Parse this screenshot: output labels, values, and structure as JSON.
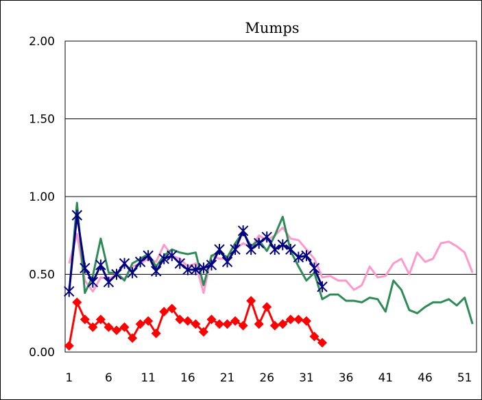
{
  "chart_data": {
    "type": "line",
    "title": "Mumps",
    "xlabel": "",
    "ylabel": "",
    "xlim": [
      1,
      52
    ],
    "ylim": [
      0,
      2
    ],
    "y_ticks": [
      "0.00",
      "0.50",
      "1.00",
      "1.50",
      "2.00"
    ],
    "x_ticks": [
      "1",
      "6",
      "11",
      "16",
      "21",
      "26",
      "31",
      "36",
      "41",
      "46",
      "51"
    ],
    "grid": "horizontal",
    "legend": "none",
    "series": [
      {
        "color": "#ff99cc",
        "marker": "none",
        "x": [
          1,
          2,
          3,
          4,
          5,
          6,
          7,
          8,
          9,
          10,
          11,
          12,
          13,
          14,
          15,
          16,
          17,
          18,
          19,
          20,
          21,
          22,
          23,
          24,
          25,
          26,
          27,
          28,
          29,
          30,
          31,
          32,
          33,
          34,
          35,
          36,
          37,
          38,
          39,
          40,
          41,
          42,
          43,
          44,
          45,
          46,
          47,
          48,
          49,
          50,
          51,
          52
        ],
        "values": [
          0.57,
          0.76,
          0.46,
          0.39,
          0.48,
          0.47,
          0.5,
          0.47,
          0.55,
          0.57,
          0.6,
          0.58,
          0.69,
          0.62,
          0.6,
          0.55,
          0.57,
          0.38,
          0.62,
          0.6,
          0.6,
          0.66,
          0.7,
          0.67,
          0.75,
          0.72,
          0.75,
          0.8,
          0.73,
          0.72,
          0.66,
          0.6,
          0.48,
          0.49,
          0.46,
          0.46,
          0.4,
          0.43,
          0.55,
          0.48,
          0.49,
          0.57,
          0.6,
          0.5,
          0.64,
          0.58,
          0.6,
          0.7,
          0.71,
          0.68,
          0.64,
          0.51
        ]
      },
      {
        "color": "#2e8b57",
        "marker": "none",
        "x": [
          1,
          2,
          3,
          4,
          5,
          6,
          7,
          8,
          9,
          10,
          11,
          12,
          13,
          14,
          15,
          16,
          17,
          18,
          19,
          20,
          21,
          22,
          23,
          24,
          25,
          26,
          27,
          28,
          29,
          30,
          31,
          32,
          33,
          34,
          35,
          36,
          37,
          38,
          39,
          40,
          41,
          42,
          43,
          44,
          45,
          46,
          47,
          48,
          49,
          50,
          51,
          52
        ],
        "values": [
          0.38,
          0.96,
          0.38,
          0.49,
          0.73,
          0.51,
          0.51,
          0.46,
          0.57,
          0.6,
          0.63,
          0.55,
          0.62,
          0.66,
          0.64,
          0.63,
          0.64,
          0.43,
          0.62,
          0.64,
          0.61,
          0.7,
          0.77,
          0.68,
          0.72,
          0.65,
          0.75,
          0.87,
          0.65,
          0.55,
          0.46,
          0.51,
          0.34,
          0.37,
          0.37,
          0.33,
          0.33,
          0.32,
          0.35,
          0.34,
          0.26,
          0.46,
          0.4,
          0.27,
          0.25,
          0.29,
          0.32,
          0.32,
          0.34,
          0.3,
          0.35,
          0.18
        ]
      },
      {
        "color": "#000080",
        "marker": "asterisk",
        "x": [
          1,
          2,
          3,
          4,
          5,
          6,
          7,
          8,
          9,
          10,
          11,
          12,
          13,
          14,
          15,
          16,
          17,
          18,
          19,
          20,
          21,
          22,
          23,
          24,
          25,
          26,
          27,
          28,
          29,
          30,
          31,
          32,
          33
        ],
        "values": [
          0.39,
          0.88,
          0.54,
          0.45,
          0.56,
          0.45,
          0.5,
          0.57,
          0.51,
          0.58,
          0.62,
          0.52,
          0.6,
          0.62,
          0.57,
          0.53,
          0.53,
          0.54,
          0.56,
          0.66,
          0.58,
          0.66,
          0.78,
          0.66,
          0.7,
          0.74,
          0.66,
          0.69,
          0.66,
          0.61,
          0.62,
          0.54,
          0.42
        ]
      },
      {
        "color": "#ff0000",
        "marker": "diamond",
        "x": [
          1,
          2,
          3,
          4,
          5,
          6,
          7,
          8,
          9,
          10,
          11,
          12,
          13,
          14,
          15,
          16,
          17,
          18,
          19,
          20,
          21,
          22,
          23,
          24,
          25,
          26,
          27,
          28,
          29,
          30,
          31,
          32,
          33
        ],
        "values": [
          0.04,
          0.32,
          0.21,
          0.16,
          0.21,
          0.16,
          0.14,
          0.16,
          0.09,
          0.18,
          0.2,
          0.12,
          0.26,
          0.28,
          0.21,
          0.2,
          0.18,
          0.13,
          0.21,
          0.18,
          0.18,
          0.2,
          0.17,
          0.33,
          0.18,
          0.29,
          0.17,
          0.18,
          0.21,
          0.21,
          0.2,
          0.1,
          0.06
        ]
      }
    ]
  }
}
